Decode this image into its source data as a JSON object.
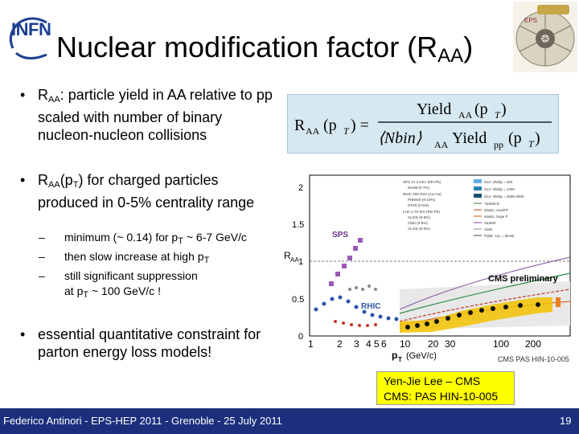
{
  "header": {
    "logo_text": "INFN",
    "title_main": "Nuclear modification factor (R",
    "title_sub": "AA",
    "title_end": ")"
  },
  "bullets": [
    {
      "r": "R",
      "r_sub": "AA",
      "text": ": particle yield in AA relative to pp scaled with number of binary nucleon-nucleon collisions"
    },
    {
      "r": "R",
      "r_sub": "AA",
      "pt_open": "(p",
      "pt_sub": "T",
      "text": ") for charged particles produced in 0-5% centrality range"
    },
    {
      "text": "essential quantitative constraint for  parton energy loss models!"
    }
  ],
  "sub_bullets": [
    {
      "text": "minimum (~ 0.14) for p",
      "sub": "T",
      "tail": " ~ 6-7 GeV/c"
    },
    {
      "text": "then slow increase at high p",
      "sub": "T",
      "tail": ""
    },
    {
      "text": "still significant suppression",
      "line2a": "at  p",
      "sub": "T",
      "line2b": " ~ 100 GeV/c !"
    }
  ],
  "formula": {
    "lhs": "R",
    "lhs_sub": "AA",
    "arg": "(p",
    "arg_sub": "T",
    "arg_close": ") =",
    "num": "Yield",
    "num_sub": "AA",
    "num_arg": "(p",
    "num_arg_sub": "T",
    "num_close": ")",
    "den_a": "⟨Nbin⟩",
    "den_a_sub": "AA",
    "den_b": "Yield",
    "den_b_sub": "pp",
    "den_arg": "(p",
    "den_arg_sub": "T",
    "den_close": ")"
  },
  "plot": {
    "ylabel": "R",
    "ylabel_sub": "AA",
    "yticks": [
      "0",
      "0.5",
      "1",
      "1.5",
      "2"
    ],
    "xticks": [
      "1",
      "2",
      "3",
      "4",
      "5",
      "6",
      "10",
      "20",
      "30",
      "100",
      "200"
    ],
    "xlabel": "p",
    "xlabel_sub": "T",
    "xlabel_unit": "(GeV/c)",
    "label_sps": "SPS",
    "label_rhic": "RHIC",
    "label_cms": "CMS preliminary",
    "caption": "CMS PAS HIN-10-005",
    "legend_left": [
      "SPS 17.3 GeV (Pb+Pb)",
      "WA98 (0-7%)",
      "RHIC 200 GeV (Au+Au)",
      "PHENIX (0-10%)",
      "STAR (0-5%)",
      "LHC 2.76 TeV (Pb+Pb)",
      "ALICE (0-5%)",
      "CMS (0-5%)",
      "ALICE (0-5%)"
    ],
    "legend_right": [
      "GLV: dN/dy = 400",
      "GLV: dN/dy = 1400",
      "GLV: dN/dy = 2500-4000",
      "YaJEM-D",
      "elastic, small P",
      "elastic, large P",
      "YaJEM",
      "ASW",
      "PQM: <q> = 30-80"
    ],
    "colors": {
      "sps": "#9b59b6",
      "rhic": "#2b56a8",
      "cms_band": "#f2c200",
      "cms_points": "#111111",
      "alice": "#c0392b",
      "grey_points": "#888888"
    }
  },
  "credit": {
    "line1": "Yen-Jie Lee – CMS",
    "line2": "CMS: PAS HIN-10-005"
  },
  "footer": {
    "left": "Federico Antinori - EPS-HEP 2011 - Grenoble - 25 July 2011",
    "page": "19"
  }
}
